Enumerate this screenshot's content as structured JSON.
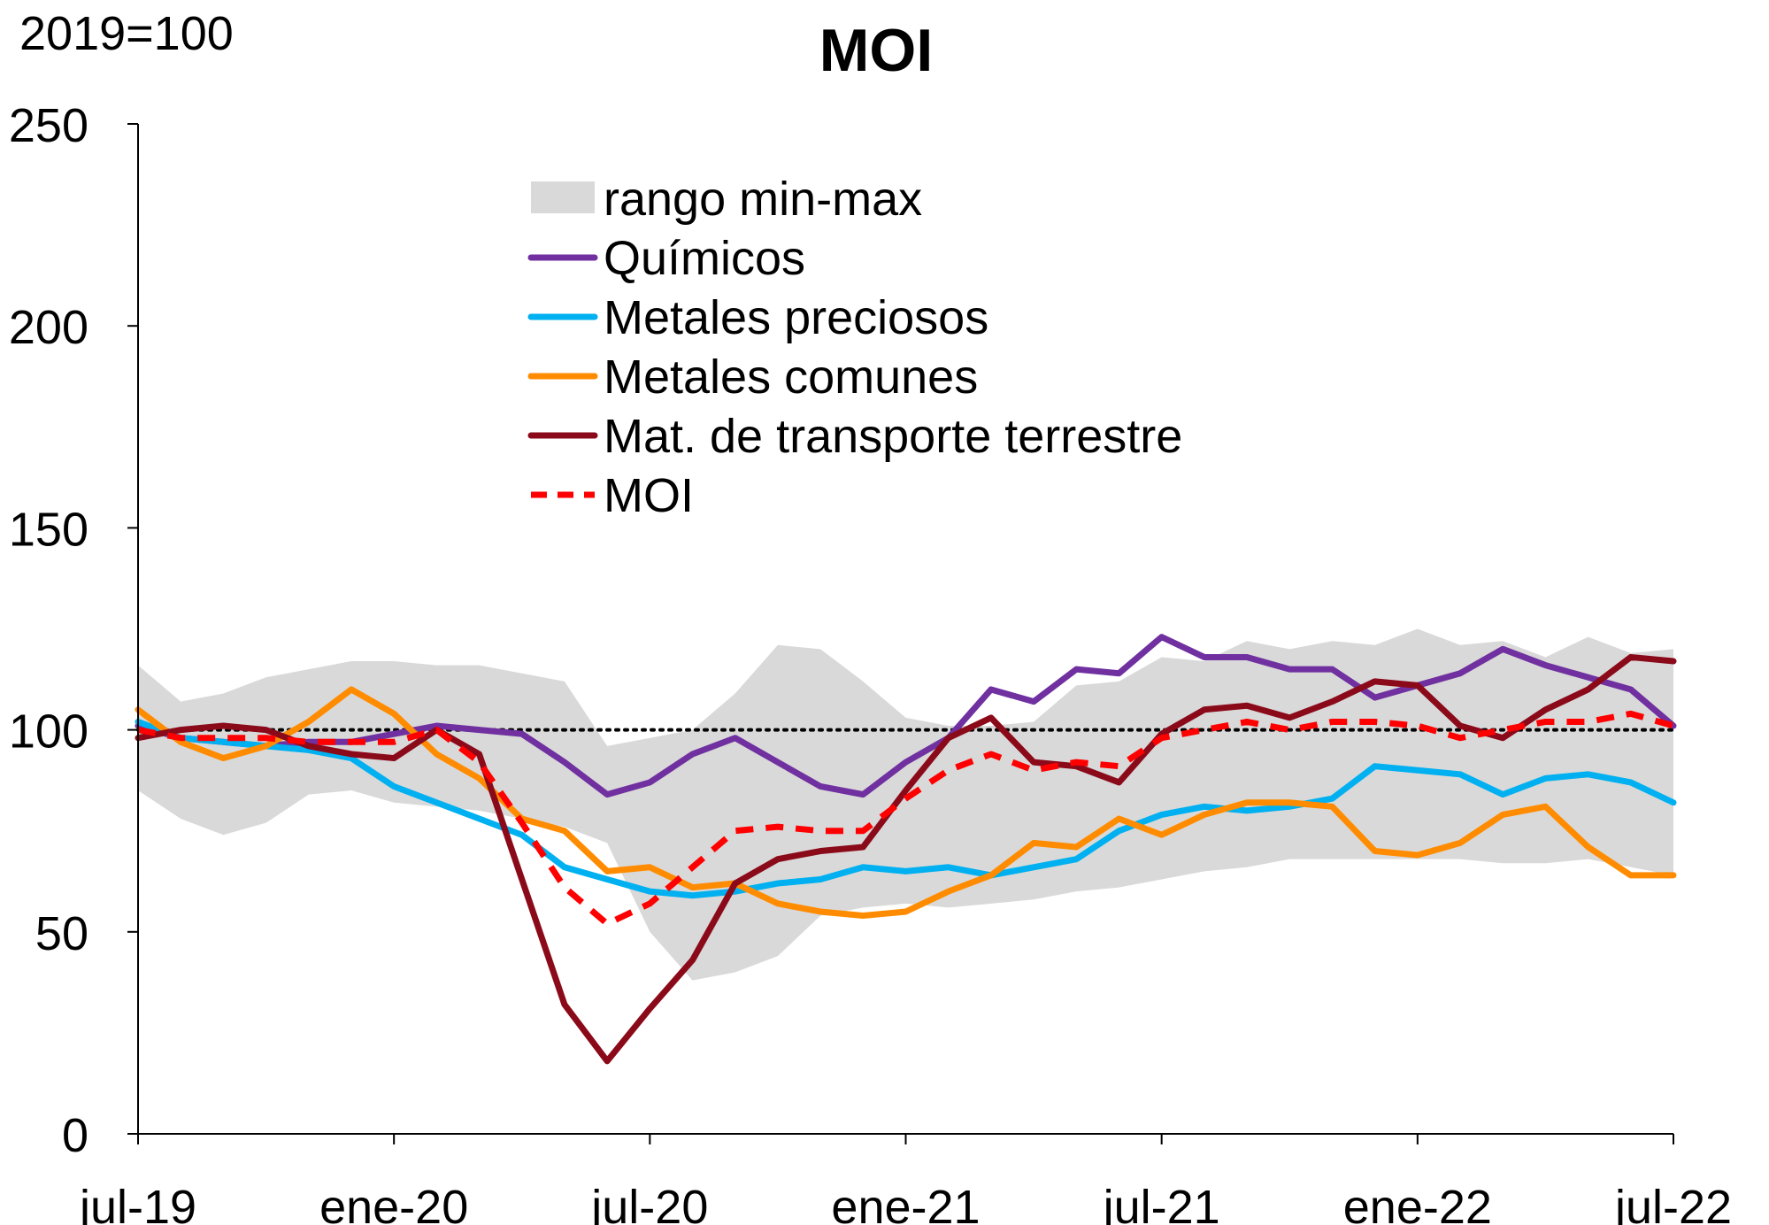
{
  "chart_data": {
    "type": "line",
    "title": "MOI",
    "ylabel": "2019=100",
    "ylim": [
      0,
      250
    ],
    "yticks": [
      0,
      50,
      100,
      150,
      200,
      250
    ],
    "xtick_labels": [
      "jul-19",
      "ene-20",
      "jul-20",
      "ene-21",
      "jul-21",
      "ene-22",
      "jul-22"
    ],
    "n_points": 37,
    "reference_line": 100,
    "band": {
      "name": "rango min-max",
      "color": "#d9d9d9",
      "min": [
        85,
        78,
        74,
        77,
        84,
        85,
        82,
        81,
        80,
        78,
        76,
        72,
        50,
        38,
        40,
        44,
        54,
        56,
        57,
        56,
        57,
        58,
        60,
        61,
        63,
        65,
        66,
        68,
        68,
        68,
        68,
        68,
        67,
        67,
        68,
        66,
        64
      ],
      "max": [
        116,
        107,
        109,
        113,
        115,
        117,
        117,
        116,
        116,
        114,
        112,
        96,
        98,
        100,
        109,
        121,
        120,
        112,
        103,
        101,
        101,
        102,
        111,
        112,
        118,
        117,
        122,
        120,
        122,
        121,
        125,
        121,
        122,
        118,
        123,
        119,
        120
      ]
    },
    "series": [
      {
        "name": "Químicos",
        "color": "#7030a0",
        "dash": false,
        "values": [
          101,
          98,
          97,
          96,
          97,
          97,
          99,
          101,
          100,
          99,
          92,
          84,
          87,
          94,
          98,
          92,
          86,
          84,
          92,
          98,
          110,
          107,
          115,
          114,
          123,
          118,
          118,
          115,
          115,
          108,
          111,
          114,
          120,
          116,
          113,
          110,
          101
        ]
      },
      {
        "name": "Metales preciosos",
        "color": "#00b0f0",
        "dash": false,
        "values": [
          102,
          98,
          97,
          96,
          95,
          93,
          86,
          82,
          78,
          74,
          66,
          63,
          60,
          59,
          60,
          62,
          63,
          66,
          65,
          66,
          64,
          66,
          68,
          75,
          79,
          81,
          80,
          81,
          83,
          91,
          90,
          89,
          84,
          88,
          89,
          87,
          82
        ]
      },
      {
        "name": "Metales comunes",
        "color": "#ff8c00",
        "dash": false,
        "values": [
          105,
          97,
          93,
          96,
          102,
          110,
          104,
          94,
          88,
          78,
          75,
          65,
          66,
          61,
          62,
          57,
          55,
          54,
          55,
          60,
          64,
          72,
          71,
          78,
          74,
          79,
          82,
          82,
          81,
          70,
          69,
          72,
          79,
          81,
          71,
          64,
          64
        ]
      },
      {
        "name": "Mat. de transporte terrestre",
        "color": "#8b0a1a",
        "dash": false,
        "values": [
          98,
          100,
          101,
          100,
          96,
          94,
          93,
          100,
          94,
          63,
          32,
          18,
          31,
          43,
          62,
          68,
          70,
          71,
          85,
          98,
          103,
          92,
          91,
          87,
          99,
          105,
          106,
          103,
          107,
          112,
          111,
          101,
          98,
          105,
          110,
          118,
          117
        ]
      },
      {
        "name": "MOI",
        "color": "#ff0000",
        "dash": true,
        "values": [
          100,
          98,
          98,
          98,
          97,
          97,
          97,
          100,
          92,
          77,
          61,
          52,
          57,
          66,
          75,
          76,
          75,
          75,
          83,
          90,
          94,
          90,
          92,
          91,
          98,
          100,
          102,
          100,
          102,
          102,
          101,
          98,
          100,
          102,
          102,
          104,
          101
        ]
      }
    ]
  }
}
